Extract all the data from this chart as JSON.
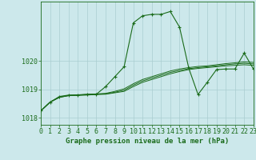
{
  "x": [
    0,
    1,
    2,
    3,
    4,
    5,
    6,
    7,
    8,
    9,
    10,
    11,
    12,
    13,
    14,
    15,
    16,
    17,
    18,
    19,
    20,
    21,
    22,
    23
  ],
  "line_main": [
    1018.25,
    1018.55,
    1018.75,
    1018.8,
    1018.8,
    1018.82,
    1018.83,
    1019.1,
    1019.45,
    1019.8,
    1021.35,
    1021.6,
    1021.65,
    1021.65,
    1021.75,
    1021.2,
    1019.75,
    1018.82,
    1019.25,
    1019.7,
    1019.72,
    1019.72,
    1020.28,
    1019.72
  ],
  "line1": [
    1018.25,
    1018.55,
    1018.72,
    1018.78,
    1018.79,
    1018.8,
    1018.82,
    1018.83,
    1018.88,
    1018.93,
    1019.1,
    1019.25,
    1019.35,
    1019.45,
    1019.55,
    1019.63,
    1019.7,
    1019.74,
    1019.77,
    1019.8,
    1019.83,
    1019.85,
    1019.87,
    1019.85
  ],
  "line2": [
    1018.25,
    1018.55,
    1018.72,
    1018.78,
    1018.8,
    1018.81,
    1018.83,
    1018.84,
    1018.9,
    1018.97,
    1019.15,
    1019.3,
    1019.4,
    1019.5,
    1019.6,
    1019.67,
    1019.73,
    1019.77,
    1019.8,
    1019.83,
    1019.87,
    1019.9,
    1019.92,
    1019.9
  ],
  "line3": [
    1018.25,
    1018.56,
    1018.73,
    1018.79,
    1018.81,
    1018.83,
    1018.84,
    1018.86,
    1018.93,
    1019.02,
    1019.2,
    1019.35,
    1019.45,
    1019.55,
    1019.65,
    1019.72,
    1019.77,
    1019.81,
    1019.83,
    1019.87,
    1019.91,
    1019.94,
    1019.97,
    1019.95
  ],
  "bg_color": "#cce8eb",
  "line_color": "#1a6b1a",
  "grid_color": "#aacdd0",
  "xlabel": "Graphe pression niveau de la mer (hPa)",
  "ylabel_ticks": [
    1018,
    1019,
    1020
  ],
  "ylim": [
    1017.75,
    1022.1
  ],
  "xlim": [
    0,
    23
  ],
  "tick_color": "#1a6b1a",
  "font_size_xlabel": 6.5,
  "font_size_ticks": 6.0
}
